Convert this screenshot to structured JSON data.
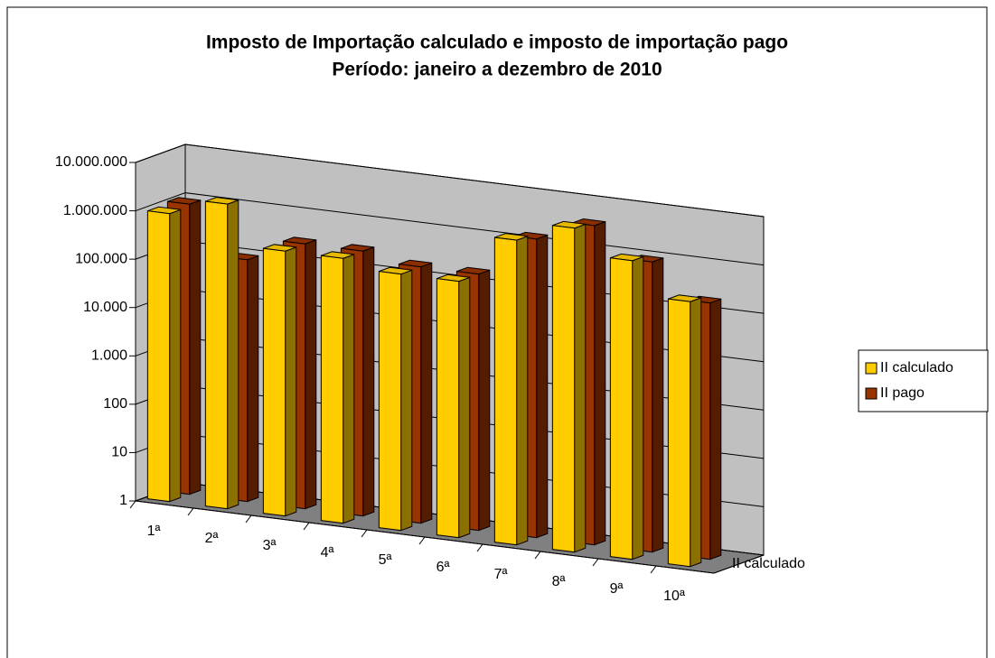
{
  "chart_data": {
    "type": "bar3d",
    "title": "Imposto de Importação calculado e imposto de importação pago",
    "subtitle": "Período: janeiro a dezembro de 2010",
    "categories": [
      "1ª",
      "2ª",
      "3ª",
      "4ª",
      "5ª",
      "6ª",
      "7ª",
      "8ª",
      "9ª",
      "10ª"
    ],
    "series": [
      {
        "name": "II calculado",
        "color": "#ffcc00",
        "values": [
          900000,
          2000000,
          300000,
          300000,
          200000,
          200000,
          2000000,
          5000000,
          1500000,
          300000
        ]
      },
      {
        "name": "II pago",
        "color": "#993300",
        "values": [
          1000000,
          100000,
          300000,
          300000,
          200000,
          200000,
          1500000,
          4000000,
          1000000,
          200000
        ]
      }
    ],
    "log_scale": true,
    "ylim": [
      1,
      10000000
    ],
    "yticks": [
      1,
      10,
      100,
      {
        "value": 1000,
        "label": "1.000"
      },
      {
        "value": 10000,
        "label": "10.000"
      },
      {
        "value": 100000,
        "label": "100.000"
      },
      {
        "value": 1000000,
        "label": "1.000.000"
      },
      {
        "value": 10000000,
        "label": "10.000.000"
      }
    ],
    "grid": true,
    "legend": "right"
  }
}
